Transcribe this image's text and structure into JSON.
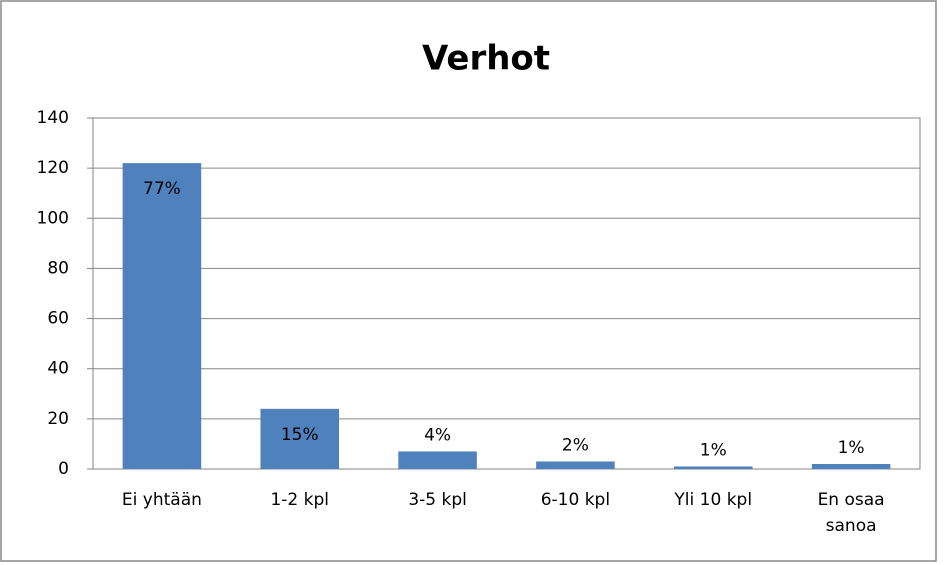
{
  "chart_data": {
    "type": "bar",
    "title": "Verhot",
    "categories": [
      "Ei yhtään",
      "1-2 kpl",
      "3-5 kpl",
      "6-10 kpl",
      "Yli 10 kpl",
      "En osaa sanoa"
    ],
    "values": [
      122,
      24,
      7,
      3,
      1,
      2
    ],
    "data_labels": [
      "77%",
      "15%",
      "4%",
      "2%",
      "1%",
      "1%"
    ],
    "color": "#4f81bd",
    "ylim": [
      0,
      140
    ],
    "yticks": [
      0,
      20,
      40,
      60,
      80,
      100,
      120,
      140
    ],
    "grid": true
  }
}
